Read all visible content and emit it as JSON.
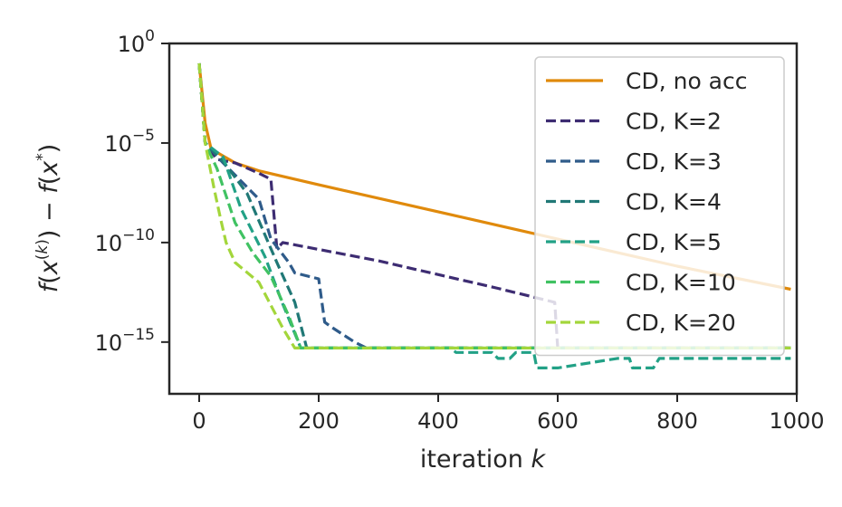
{
  "chart_data": {
    "type": "line",
    "title": "",
    "xlabel": "iteration",
    "xlabel_var": "k",
    "ylabel": "f(x^(k)) − f(x*)",
    "y_scale": "log",
    "xlim": [
      -50,
      1000
    ],
    "ylim_exponent": [
      -17.6,
      0
    ],
    "x_ticks": [
      0,
      200,
      400,
      600,
      800,
      1000
    ],
    "x_tick_labels": [
      "0",
      "200",
      "400",
      "600",
      "800",
      "1000"
    ],
    "y_ticks": [
      {
        "base": "10",
        "exp": "0",
        "value": 1
      },
      {
        "base": "10",
        "exp": "−5",
        "value": 1e-05
      },
      {
        "base": "10",
        "exp": "−10",
        "value": 1e-10
      },
      {
        "base": "10",
        "exp": "−15",
        "value": 1e-15
      }
    ],
    "grid": false,
    "legend_position": "top-right",
    "series": [
      {
        "name": "CD, no acc",
        "color": "#e08a0c",
        "dash": "solid",
        "points": [
          [
            0,
            0.1
          ],
          [
            10,
            0.0001
          ],
          [
            20,
            5e-06
          ],
          [
            60,
            1e-06
          ],
          [
            100,
            4e-07
          ],
          [
            200,
            8e-08
          ],
          [
            400,
            3.5e-09
          ],
          [
            600,
            1.5e-10
          ],
          [
            800,
            6.5e-12
          ],
          [
            990,
            4.5e-13
          ]
        ]
      },
      {
        "name": "CD, K=2",
        "color": "#3d2c72",
        "dash": "dashed",
        "points": [
          [
            0,
            0.1
          ],
          [
            10,
            1e-05
          ],
          [
            30,
            1.5e-06
          ],
          [
            60,
            1e-06
          ],
          [
            100,
            3e-07
          ],
          [
            120,
            1.5e-07
          ],
          [
            130,
            5e-11
          ],
          [
            140,
            1e-10
          ],
          [
            300,
            1.2e-11
          ],
          [
            500,
            5e-13
          ],
          [
            595,
            1e-13
          ],
          [
            600,
            5e-16
          ],
          [
            990,
            5e-16
          ]
        ]
      },
      {
        "name": "CD, K=3",
        "color": "#2f5b8a",
        "dash": "dashed",
        "points": [
          [
            0,
            0.1
          ],
          [
            10,
            1e-05
          ],
          [
            40,
            1e-06
          ],
          [
            100,
            1.5e-08
          ],
          [
            120,
            1.5e-10
          ],
          [
            150,
            1e-11
          ],
          [
            160,
            3e-12
          ],
          [
            200,
            1.5e-12
          ],
          [
            210,
            1e-14
          ],
          [
            220,
            6e-15
          ],
          [
            260,
            1e-15
          ],
          [
            280,
            5e-16
          ],
          [
            990,
            5e-16
          ]
        ]
      },
      {
        "name": "CD, K=4",
        "color": "#207876",
        "dash": "dashed",
        "points": [
          [
            0,
            0.1
          ],
          [
            10,
            1e-05
          ],
          [
            40,
            1.2e-06
          ],
          [
            80,
            3e-08
          ],
          [
            130,
            1e-11
          ],
          [
            160,
            1e-13
          ],
          [
            180,
            5e-16
          ],
          [
            400,
            5e-16
          ],
          [
            520,
            5e-16
          ],
          [
            990,
            5e-16
          ]
        ]
      },
      {
        "name": "CD, K=5",
        "color": "#22a186",
        "dash": "dashed",
        "points": [
          [
            0,
            0.1
          ],
          [
            10,
            1e-05
          ],
          [
            40,
            2e-06
          ],
          [
            70,
            5e-09
          ],
          [
            110,
            2e-11
          ],
          [
            140,
            8e-14
          ],
          [
            170,
            5e-16
          ],
          [
            420,
            5e-16
          ],
          [
            430,
            3e-16
          ],
          [
            490,
            3e-16
          ],
          [
            500,
            1.5e-16
          ],
          [
            520,
            1.5e-16
          ],
          [
            530,
            3e-16
          ],
          [
            560,
            3e-16
          ],
          [
            565,
            5e-17
          ],
          [
            600,
            5e-17
          ],
          [
            700,
            1.5e-16
          ],
          [
            720,
            1.5e-16
          ],
          [
            725,
            5e-17
          ],
          [
            760,
            5e-17
          ],
          [
            770,
            1.5e-16
          ],
          [
            990,
            1.5e-16
          ]
        ]
      },
      {
        "name": "CD, K=10",
        "color": "#40c262",
        "dash": "dashed",
        "points": [
          [
            0,
            0.1
          ],
          [
            10,
            1e-05
          ],
          [
            30,
            5e-07
          ],
          [
            60,
            1e-09
          ],
          [
            90,
            3e-11
          ],
          [
            120,
            2e-12
          ],
          [
            150,
            2e-14
          ],
          [
            170,
            5e-16
          ],
          [
            990,
            5e-16
          ]
        ]
      },
      {
        "name": "CD, K=20",
        "color": "#a3d63b",
        "dash": "dashed",
        "points": [
          [
            0,
            0.1
          ],
          [
            10,
            1e-05
          ],
          [
            25,
            5e-08
          ],
          [
            35,
            2e-09
          ],
          [
            45,
            1e-10
          ],
          [
            60,
            1e-11
          ],
          [
            100,
            1e-12
          ],
          [
            140,
            5e-15
          ],
          [
            160,
            5e-16
          ],
          [
            990,
            5e-16
          ]
        ]
      }
    ]
  }
}
